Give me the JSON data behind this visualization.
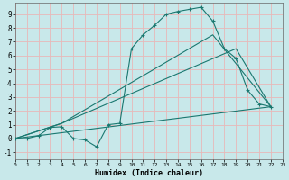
{
  "background_color": "#c8e8ea",
  "grid_color": "#e8b8b8",
  "line_color": "#1a7870",
  "xlabel": "Humidex (Indice chaleur)",
  "xlim": [
    0,
    23
  ],
  "ylim": [
    -1.5,
    9.8
  ],
  "yticks": [
    -1,
    0,
    1,
    2,
    3,
    4,
    5,
    6,
    7,
    8,
    9
  ],
  "xticks": [
    0,
    1,
    2,
    3,
    4,
    5,
    6,
    7,
    8,
    9,
    10,
    11,
    12,
    13,
    14,
    15,
    16,
    17,
    18,
    19,
    20,
    21,
    22,
    23
  ],
  "main_x": [
    0,
    1,
    2,
    3,
    4,
    5,
    6,
    7,
    8,
    9,
    10,
    11,
    12,
    13,
    14,
    15,
    16,
    17,
    18,
    19,
    20,
    21,
    22
  ],
  "main_y": [
    0.0,
    0.0,
    0.2,
    0.8,
    0.85,
    0.0,
    -0.1,
    -0.6,
    1.0,
    1.1,
    6.5,
    7.5,
    8.2,
    9.0,
    9.2,
    9.35,
    9.5,
    8.5,
    6.5,
    5.8,
    3.5,
    2.5,
    2.3
  ],
  "aux_lines": [
    {
      "x": [
        0,
        4,
        17,
        22
      ],
      "y": [
        0,
        1.1,
        7.5,
        2.3
      ]
    },
    {
      "x": [
        0,
        4,
        19,
        22
      ],
      "y": [
        0,
        1.1,
        6.5,
        2.3
      ]
    },
    {
      "x": [
        0,
        22
      ],
      "y": [
        0,
        2.3
      ]
    }
  ]
}
